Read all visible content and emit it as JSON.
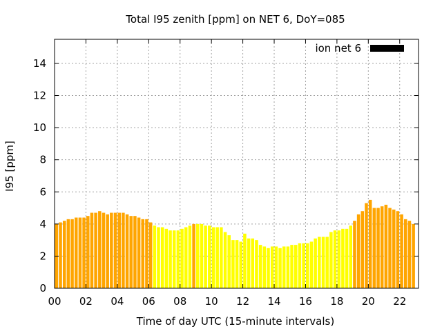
{
  "chart_data": {
    "type": "bar",
    "title": "Total I95 zenith [ppm] on NET 6, DoY=085",
    "xlabel": "Time of day UTC (15-minute intervals)",
    "ylabel": "I95 [ppm]",
    "xlim": [
      0,
      23.2
    ],
    "ylim": [
      0,
      15.5
    ],
    "grid": true,
    "legend": {
      "position": "top-right",
      "label": "ion net 6"
    },
    "x_ticks": [
      "00",
      "02",
      "04",
      "06",
      "08",
      "10",
      "12",
      "14",
      "16",
      "18",
      "20",
      "22"
    ],
    "y_ticks": [
      "0",
      "2",
      "4",
      "6",
      "8",
      "10",
      "12",
      "14"
    ],
    "interval_hours": 0.25,
    "colors": {
      "day": "#ffff00",
      "night": "#ffa500",
      "legend_swatch": "#000000",
      "grid": "#a0a0a0"
    },
    "day_flags_note_free": true,
    "values": [
      4.0,
      4.1,
      4.2,
      4.3,
      4.3,
      4.4,
      4.4,
      4.4,
      4.5,
      4.7,
      4.7,
      4.8,
      4.7,
      4.6,
      4.7,
      4.7,
      4.7,
      4.7,
      4.6,
      4.5,
      4.5,
      4.4,
      4.3,
      4.3,
      4.1,
      3.9,
      3.8,
      3.8,
      3.7,
      3.6,
      3.6,
      3.6,
      3.7,
      3.8,
      3.9,
      4.0,
      4.0,
      4.0,
      3.9,
      3.9,
      3.8,
      3.8,
      3.8,
      3.5,
      3.3,
      3.0,
      3.0,
      2.9,
      3.4,
      3.1,
      3.1,
      3.0,
      2.7,
      2.6,
      2.5,
      2.6,
      2.6,
      2.5,
      2.6,
      2.6,
      2.7,
      2.7,
      2.8,
      2.8,
      2.8,
      2.9,
      3.1,
      3.2,
      3.2,
      3.2,
      3.5,
      3.6,
      3.6,
      3.7,
      3.7,
      3.9,
      4.2,
      4.6,
      4.8,
      5.3,
      5.5,
      5.0,
      5.0,
      5.1,
      5.2,
      5.0,
      4.9,
      4.8,
      4.6,
      4.3,
      4.2,
      4.0
    ],
    "day": [
      false,
      false,
      false,
      false,
      false,
      false,
      false,
      false,
      false,
      false,
      false,
      false,
      false,
      false,
      false,
      false,
      false,
      false,
      false,
      false,
      false,
      false,
      false,
      false,
      false,
      true,
      true,
      true,
      true,
      true,
      true,
      true,
      true,
      true,
      true,
      false,
      true,
      true,
      true,
      true,
      true,
      true,
      true,
      true,
      true,
      true,
      true,
      true,
      true,
      true,
      true,
      true,
      true,
      true,
      true,
      true,
      true,
      true,
      true,
      true,
      true,
      true,
      true,
      true,
      true,
      true,
      true,
      true,
      true,
      true,
      true,
      true,
      true,
      true,
      true,
      true,
      false,
      false,
      false,
      false,
      false,
      false,
      false,
      false,
      false,
      false,
      false,
      false,
      false,
      false,
      false,
      false
    ]
  }
}
